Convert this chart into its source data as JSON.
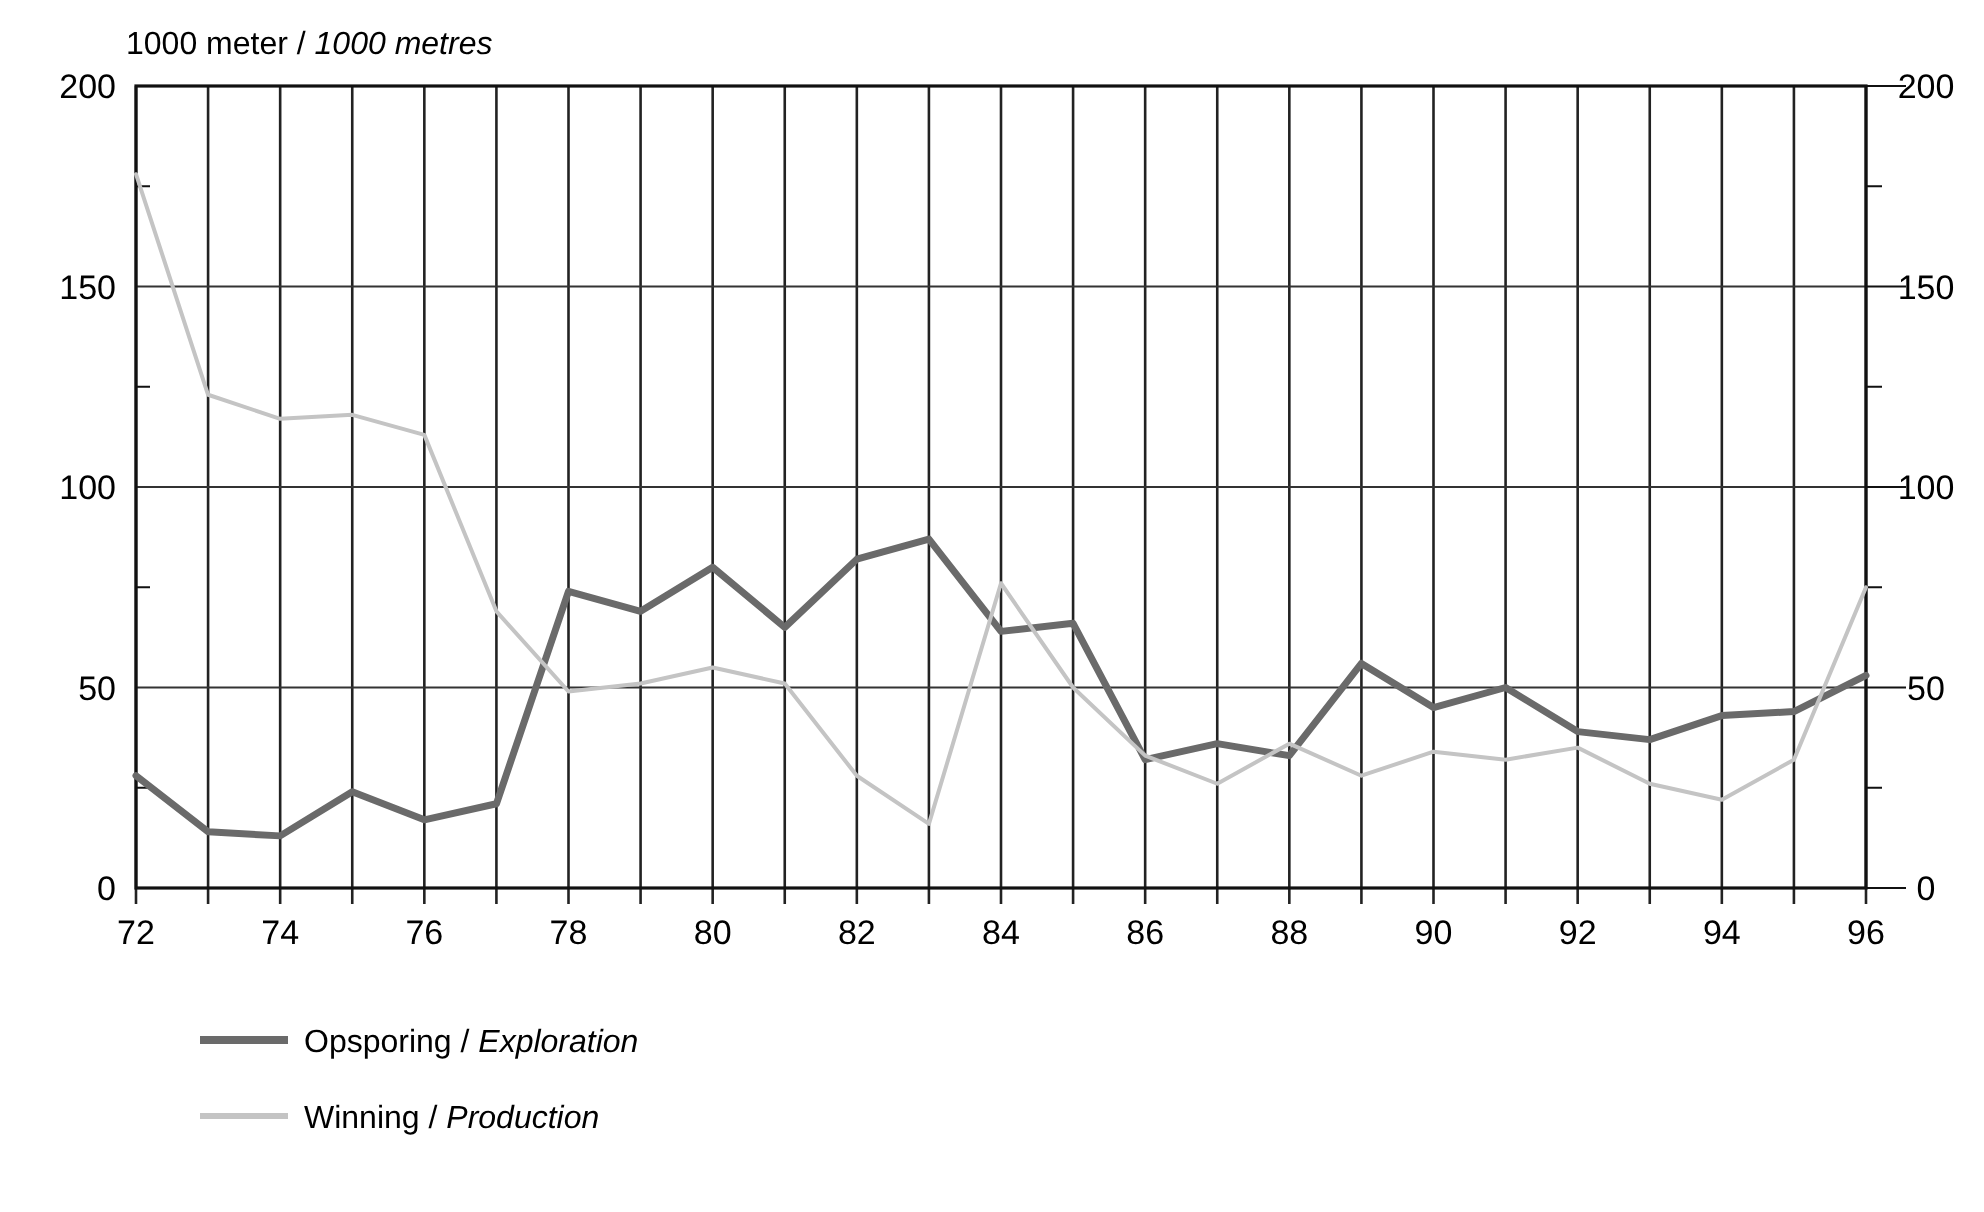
{
  "chart_data": {
    "type": "line",
    "ylabel": "1000 meter / 1000 metres",
    "x": [
      72,
      73,
      74,
      75,
      76,
      77,
      78,
      79,
      80,
      81,
      82,
      83,
      84,
      85,
      86,
      87,
      88,
      89,
      90,
      91,
      92,
      93,
      94,
      95,
      96
    ],
    "xlim": [
      72,
      96
    ],
    "xticks": [
      72,
      {
        "value": 73,
        "label": null
      },
      74,
      {
        "value": 75,
        "label": null
      },
      76,
      {
        "value": 77,
        "label": null
      },
      78,
      {
        "value": 79,
        "label": null
      },
      80,
      {
        "value": 81,
        "label": null
      },
      82,
      {
        "value": 83,
        "label": null
      },
      84,
      {
        "value": 85,
        "label": null
      },
      86,
      {
        "value": 87,
        "label": null
      },
      88,
      {
        "value": 89,
        "label": null
      },
      90,
      {
        "value": 91,
        "label": null
      },
      92,
      {
        "value": 93,
        "label": null
      },
      94,
      {
        "value": 95,
        "label": null
      },
      96
    ],
    "ylim": [
      0,
      200
    ],
    "yticks": [
      0,
      {
        "value": 25,
        "label": null
      },
      50,
      {
        "value": 75,
        "label": null
      },
      100,
      {
        "value": 125,
        "label": null
      },
      150,
      {
        "value": 175,
        "label": null
      },
      200
    ],
    "y2lim": [
      0,
      200
    ],
    "y2ticks": [
      0,
      {
        "value": 25,
        "label": null
      },
      50,
      {
        "value": 75,
        "label": null
      },
      100,
      {
        "value": 125,
        "label": null
      },
      150,
      {
        "value": 175,
        "label": null
      },
      200
    ],
    "grid": true,
    "legend": "bottom",
    "marker": "none",
    "line_style": "solid",
    "series": [
      {
        "name": "Opsporing / Exploration",
        "color": "#6a6a6a",
        "values": [
          28,
          14,
          13,
          24,
          17,
          21,
          74,
          69,
          80,
          65,
          82,
          87,
          64,
          66,
          32,
          36,
          33,
          56,
          45,
          50,
          39,
          37,
          43,
          44,
          53
        ]
      },
      {
        "name": "Winning / Production",
        "color": "#c4c4c4",
        "values": [
          178,
          123,
          117,
          118,
          113,
          69,
          49,
          51,
          55,
          51,
          28,
          16,
          76,
          50,
          33,
          26,
          36,
          28,
          34,
          32,
          35,
          26,
          22,
          32,
          75
        ]
      }
    ]
  }
}
